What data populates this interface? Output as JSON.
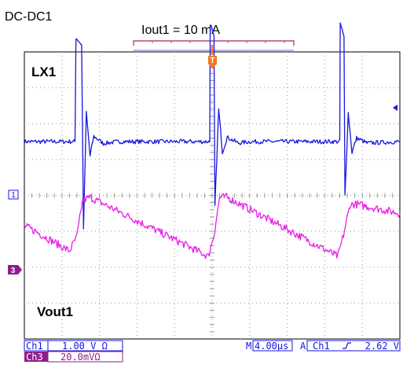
{
  "page": {
    "section_title": "DC-DC1",
    "condition_label": "Iout1 = 10 mA"
  },
  "chart_data": {
    "type": "line",
    "title": "",
    "xlabel": "",
    "ylabel": "",
    "grid": true,
    "grid_divisions": {
      "x": 10,
      "y": 8
    },
    "timebase_per_div": "4.00µs",
    "xlim_us": [
      -20,
      20
    ],
    "trigger_time_us": 0,
    "series": [
      {
        "name": "LX1",
        "channel": "1",
        "color": "#1616e0",
        "scale": "1.00 V Ω",
        "unit": "div",
        "baseline_div": 0,
        "x_us": [
          -20,
          -14.6,
          -14.5,
          -13.9,
          -13.7,
          -13.4,
          -13.0,
          -12.6,
          -11.6,
          -10.0,
          -1.3,
          -0.25,
          -0.2,
          0.2,
          0.3,
          0.7,
          1.1,
          1.6,
          2.8,
          4.0,
          13.0,
          13.6,
          13.65,
          14.05,
          14.15,
          14.5,
          14.9,
          15.4,
          16.5,
          20
        ],
        "values": [
          0,
          0,
          2.9,
          2.7,
          -2.4,
          0.8,
          -0.4,
          0.15,
          -0.05,
          0,
          0,
          0,
          3.3,
          2.9,
          -1.8,
          0.9,
          -0.3,
          0.12,
          -0.04,
          0,
          0,
          0,
          3.3,
          2.9,
          -1.5,
          0.8,
          -0.3,
          0.1,
          -0.04,
          0
        ]
      },
      {
        "name": "Vout1",
        "channel": "3",
        "color": "#e81ee8",
        "scale": "20.0mVΩ",
        "unit": "div",
        "baseline_div": 0,
        "x_us": [
          -20,
          -18.8,
          -15.2,
          -14.4,
          -13.8,
          -13.0,
          -0.4,
          0.2,
          0.8,
          1.6,
          13.4,
          14.0,
          14.7,
          15.5,
          20
        ],
        "values": [
          0.15,
          0.0,
          -0.55,
          -0.15,
          0.85,
          0.95,
          -0.7,
          -0.1,
          0.95,
          0.95,
          -0.7,
          -0.1,
          0.75,
          0.75,
          0.5
        ]
      }
    ],
    "trace_labels": {
      "ch1": "LX1",
      "ch3": "Vout1"
    },
    "channel_markers": {
      "ch1": "1",
      "ch3": "3"
    },
    "trigger": {
      "marker": "T",
      "source": "Ch1",
      "slope": "rising",
      "level": "2.62 V",
      "marker_color": "#f0781e"
    },
    "status_bar": {
      "ch1_label": "Ch1",
      "ch1_scale": "1.00 V Ω",
      "ch3_label": "Ch3",
      "ch3_scale": "20.0mVΩ",
      "timebase_prefix": "M",
      "timebase": "4.00µs",
      "trigger_mode": "A",
      "trigger_source": "Ch1",
      "trigger_slope_icon": "rising-edge-icon",
      "trigger_level": "2.62 V"
    }
  }
}
